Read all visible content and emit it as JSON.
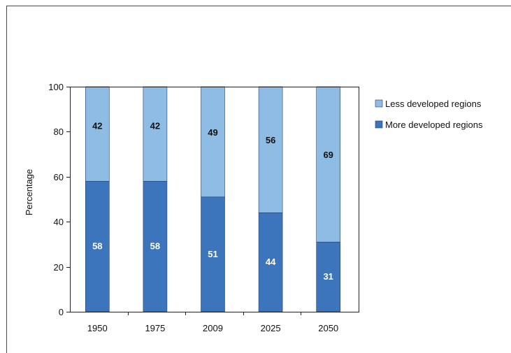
{
  "chart_data": {
    "type": "bar",
    "stacked": true,
    "categories": [
      "1950",
      "1975",
      "2009",
      "2025",
      "2050"
    ],
    "series": [
      {
        "name": "More developed regions",
        "values": [
          58,
          58,
          51,
          44,
          31
        ],
        "color": "#3d75bd",
        "label_color": "#ffffff"
      },
      {
        "name": "Less developed regions",
        "values": [
          42,
          42,
          49,
          56,
          69
        ],
        "color": "#8fbce5",
        "label_color": "#111111"
      }
    ],
    "legend_order": [
      1,
      0
    ],
    "title": "",
    "xlabel": "",
    "ylabel": "Percentage",
    "ylim": [
      0,
      100
    ],
    "yticks": [
      0,
      20,
      40,
      60,
      80,
      100
    ],
    "grid": false,
    "legend_position": "right"
  }
}
